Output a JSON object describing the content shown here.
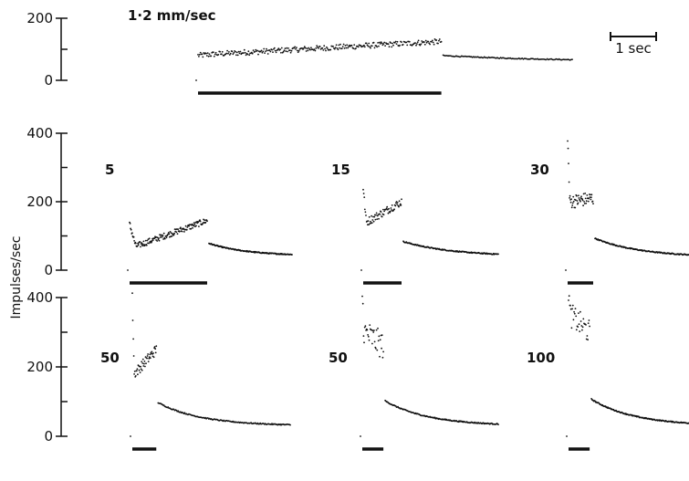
{
  "ylabel": "Impulses/sec",
  "scale_bar_label": "1 sec",
  "colors": {
    "ink": "#111111",
    "background": "#ffffff"
  },
  "chart_data": [
    {
      "type": "scatter",
      "label": "1·2 mm/sec",
      "duration": 4.3,
      "ticks": [
        "0",
        "100",
        "200"
      ],
      "tick_labels_shown": [
        "0",
        "200"
      ],
      "ylim": [
        0,
        200
      ],
      "pre": 0,
      "onset": 80,
      "peak": 85,
      "stim_end": 125,
      "post_start": 80,
      "post_end": 60,
      "post_tau": 2.0,
      "n_stim": 300,
      "noise": 9,
      "n_post": 120
    },
    {
      "type": "scatter",
      "label": "5",
      "duration": 1.25,
      "ticks": [
        "0",
        "100",
        "200",
        "300",
        "400"
      ],
      "tick_labels_shown": [
        "0",
        "200",
        "400"
      ],
      "ylim": [
        0,
        400
      ],
      "pre": 0,
      "onset": 135,
      "peak": 70,
      "stim_end": 145,
      "post_start": 80,
      "post_end": 42,
      "post_tau": 0.6,
      "n_stim": 150,
      "noise": 9,
      "n_post": 160
    },
    {
      "type": "scatter",
      "label": "15",
      "duration": 0.42,
      "ticks": [
        "0",
        "100",
        "200",
        "300",
        "400"
      ],
      "tick_labels_shown": [],
      "ylim": [
        0,
        400
      ],
      "pre": 0,
      "onset": 240,
      "peak": 140,
      "stim_end": 200,
      "post_start": 85,
      "post_end": 40,
      "post_tau": 0.55,
      "n_stim": 70,
      "noise": 12,
      "n_post": 160
    },
    {
      "type": "scatter",
      "label": "30",
      "duration": 0.28,
      "ticks": [
        "0",
        "100",
        "200",
        "300",
        "400"
      ],
      "tick_labels_shown": [],
      "ylim": [
        0,
        400
      ],
      "pre": 0,
      "onset": 395,
      "peak": 200,
      "stim_end": 210,
      "post_start": 95,
      "post_end": 38,
      "post_tau": 0.5,
      "n_stim": 55,
      "noise": 20,
      "n_post": 160
    },
    {
      "type": "scatter",
      "label": "50",
      "duration": 0.25,
      "ticks": [
        "0",
        "100",
        "200",
        "300",
        "400"
      ],
      "tick_labels_shown": [
        "0",
        "200",
        "400"
      ],
      "ylim": [
        0,
        400
      ],
      "pre": 0,
      "onset": 400,
      "peak": 180,
      "stim_end": 250,
      "post_start": 100,
      "post_end": 30,
      "post_tau": 0.45,
      "n_stim": 50,
      "noise": 15,
      "n_post": 160
    },
    {
      "type": "scatter",
      "label": "50",
      "duration": 0.22,
      "ticks": [
        "0",
        "100",
        "200",
        "300",
        "400"
      ],
      "tick_labels_shown": [],
      "ylim": [
        0,
        400
      ],
      "pre": 0,
      "onset": 405,
      "peak": 300,
      "stim_end": 260,
      "post_start": 105,
      "post_end": 30,
      "post_tau": 0.45,
      "n_stim": 35,
      "noise": 40,
      "n_post": 160
    },
    {
      "type": "scatter",
      "label": "100",
      "duration": 0.22,
      "ticks": [
        "0",
        "100",
        "200",
        "300",
        "400"
      ],
      "tick_labels_shown": [],
      "ylim": [
        0,
        400
      ],
      "pre": 0,
      "onset": 415,
      "peak": 350,
      "stim_end": 300,
      "post_start": 110,
      "post_end": 30,
      "post_tau": 0.45,
      "n_stim": 35,
      "noise": 35,
      "n_post": 160
    }
  ]
}
